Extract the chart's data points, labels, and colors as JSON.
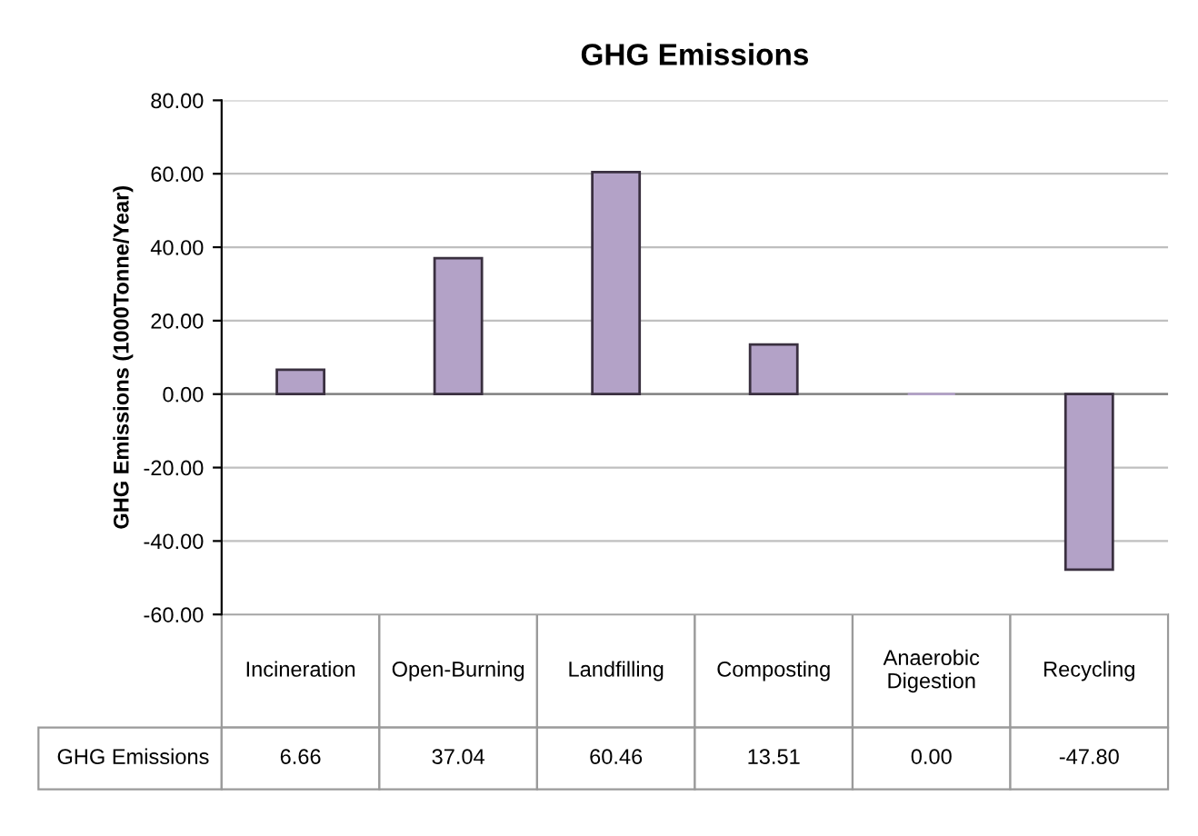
{
  "chart_data": {
    "type": "bar",
    "title": "GHG Emissions",
    "ylabel": "GHG Emissions (1000Tonne/Year)",
    "categories": [
      "Incineration",
      "Open-Burning",
      "Landfilling",
      "Composting",
      "Anaerobic Digestion",
      "Recycling"
    ],
    "series": [
      {
        "name": "GHG Emissions",
        "color": "#b3a2c7",
        "values": [
          6.66,
          37.04,
          60.46,
          13.51,
          0.0,
          -47.8
        ],
        "value_labels": [
          "6.66",
          "37.04",
          "60.46",
          "13.51",
          "0.00",
          "-47.80"
        ]
      }
    ],
    "ylim": [
      -60,
      80
    ],
    "yticks": [
      {
        "value": -60,
        "label": "-60.00"
      },
      {
        "value": -40,
        "label": "-40.00"
      },
      {
        "value": -20,
        "label": "-20.00"
      },
      {
        "value": 0,
        "label": "0.00"
      },
      {
        "value": 20,
        "label": "20.00"
      },
      {
        "value": 40,
        "label": "40.00"
      },
      {
        "value": 60,
        "label": "60.00"
      },
      {
        "value": 80,
        "label": "80.00"
      }
    ],
    "grid": "y",
    "legend": false
  }
}
